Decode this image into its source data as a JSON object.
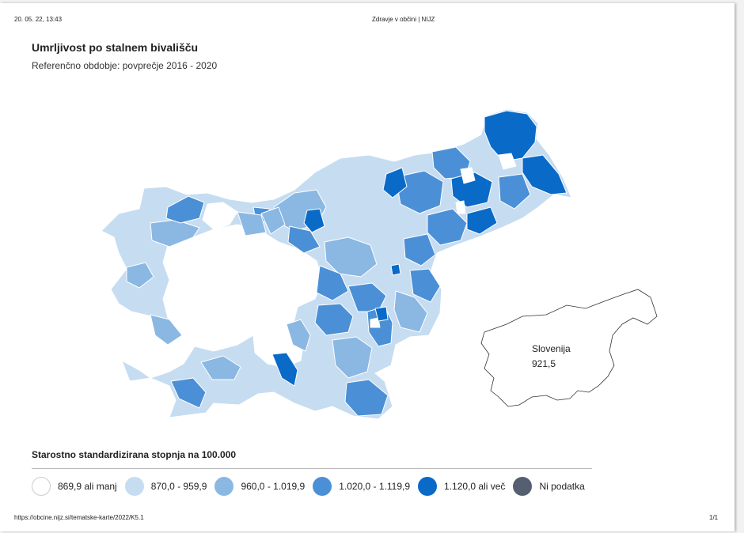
{
  "header": {
    "date": "20. 05. 22, 13:43",
    "site": "Zdravje v občini | NIJZ"
  },
  "title": "Umrljivost po stalnem bivališču",
  "subtitle": "Referenčno obdobje: povprečje 2016 - 2020",
  "inset": {
    "name": "Slovenija",
    "value": "921,5"
  },
  "legend": {
    "title": "Starostno standardizirana stopnja na 100.000",
    "items": [
      {
        "label": "869,9 ali manj",
        "color": "#ffffff"
      },
      {
        "label": "870,0 - 959,9",
        "color": "#c6dcf1"
      },
      {
        "label": "960,0 - 1.019,9",
        "color": "#8ab8e3"
      },
      {
        "label": "1.020,0 - 1.119,9",
        "color": "#4b90d6"
      },
      {
        "label": "1.120,0 ali več",
        "color": "#0a6ac7"
      },
      {
        "label": "Ni podatka",
        "color": "#555f70"
      }
    ]
  },
  "footer": {
    "url": "https://obcine.nijz.si/tematske-karte/2022/K5.1",
    "page": "1/1"
  }
}
